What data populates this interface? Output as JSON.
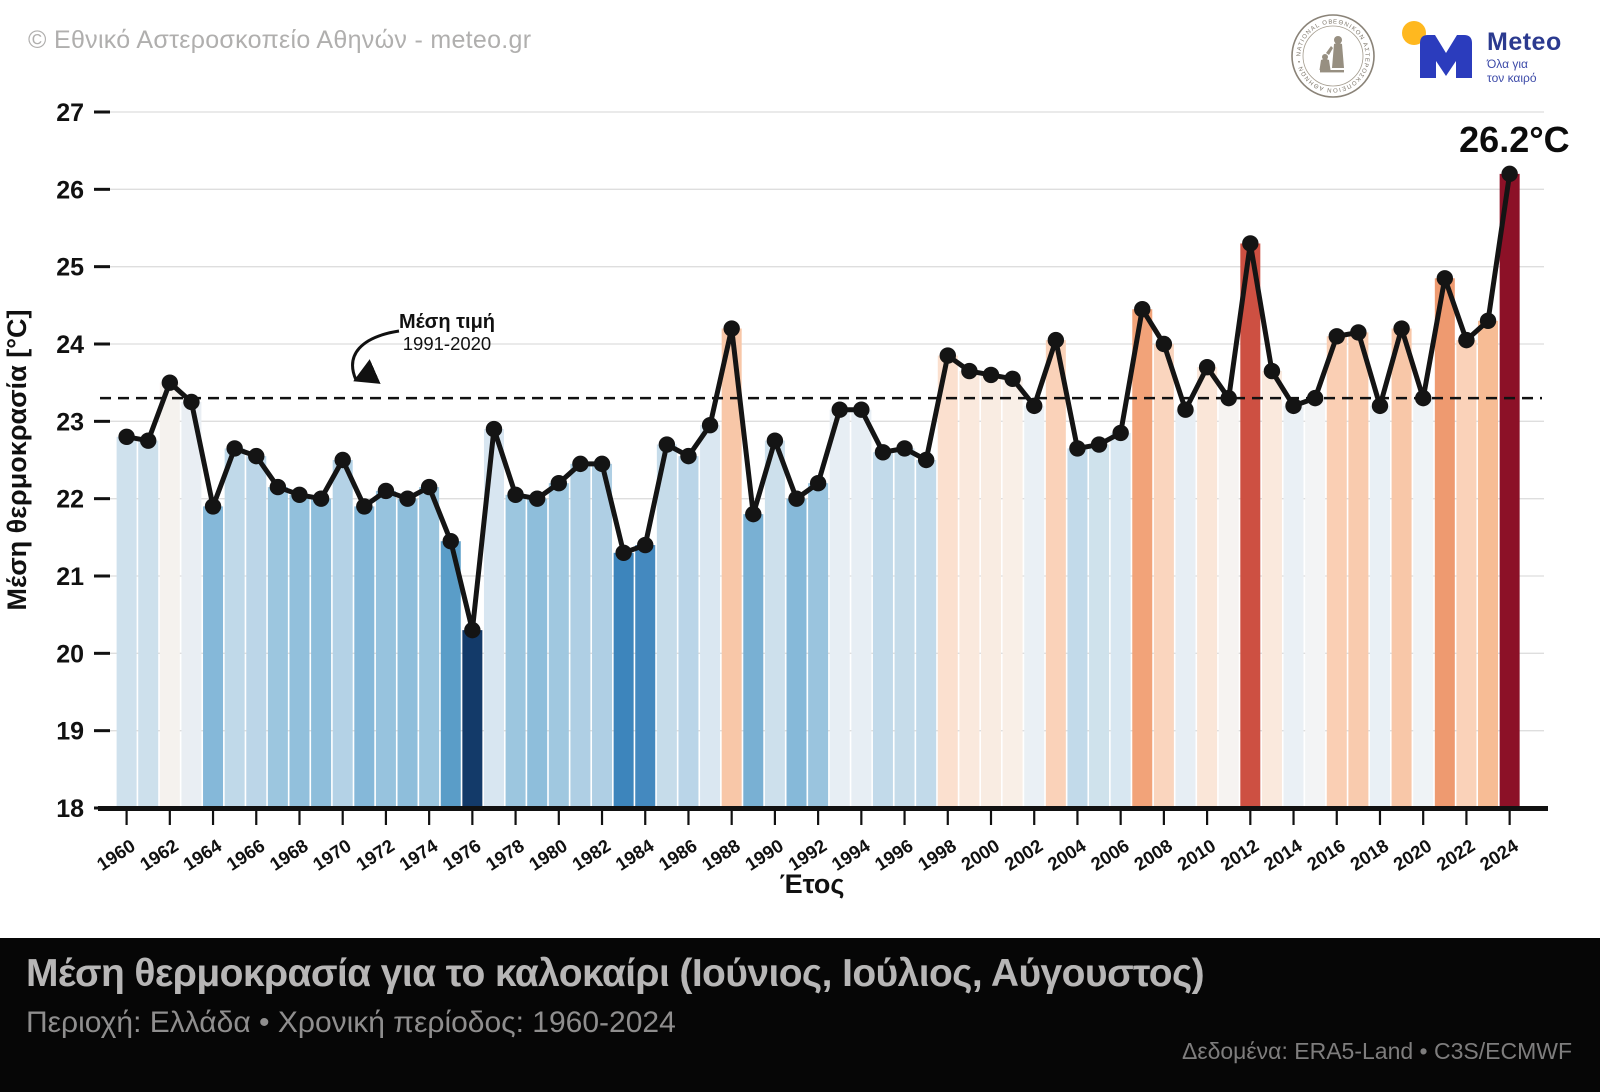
{
  "header": {
    "copyright": "© Εθνικό Αστεροσκοπείο Αθηνών - meteo.gr"
  },
  "logos": {
    "noa_ring_text": "ΕΘΝΙΚΟΝ ΑΣΤΕΡΟΣΚΟΠΕΙΟΝ ΑΘΗΝΩΝ • NATIONAL OBSERVATORY OF ATHENS •",
    "meteo_name": "Meteo",
    "meteo_tagline_line1": "Όλα για",
    "meteo_tagline_line2": "τον καιρό",
    "meteo_blue": "#2b3cbd",
    "meteo_dot_yellow": "#ffb81f"
  },
  "footer": {
    "title": "Μέση θερμοκρασία για το καλοκαίρι (Ιούνιος, Ιούλιος, Αύγουστος)",
    "subtitle": "Περιοχή: Ελλάδα • Χρονική περίοδος: 1960-2024",
    "source": "Δεδομένα: ERA5-Land • C3S/ECMWF",
    "background": "#060606"
  },
  "chart_data": {
    "type": "bar",
    "title": "",
    "xlabel": "Έτος",
    "ylabel": "Μέση θερμοκρασία [°C]",
    "ylim": [
      18,
      27
    ],
    "y_ticks": [
      18,
      19,
      20,
      21,
      22,
      23,
      24,
      25,
      26,
      27
    ],
    "x_ticks": [
      1960,
      1962,
      1964,
      1966,
      1968,
      1970,
      1972,
      1974,
      1976,
      1978,
      1980,
      1982,
      1984,
      1986,
      1988,
      1990,
      1992,
      1994,
      1996,
      1998,
      2000,
      2002,
      2004,
      2006,
      2008,
      2010,
      2012,
      2014,
      2016,
      2018,
      2020,
      2022,
      2024
    ],
    "grid": "horizontal",
    "legend": "none",
    "line_color": "#141414",
    "grid_color": "#dedede",
    "mean_line": {
      "value": 23.3,
      "label_line1": "Μέση τιμή",
      "label_line2": "1991-2020",
      "style": "dashed",
      "color": "#111111"
    },
    "peak_annotation": {
      "year": 2024,
      "label": "26.2°C"
    },
    "categories": [
      1960,
      1961,
      1962,
      1963,
      1964,
      1965,
      1966,
      1967,
      1968,
      1969,
      1970,
      1971,
      1972,
      1973,
      1974,
      1975,
      1976,
      1977,
      1978,
      1979,
      1980,
      1981,
      1982,
      1983,
      1984,
      1985,
      1986,
      1987,
      1988,
      1989,
      1990,
      1991,
      1992,
      1993,
      1994,
      1995,
      1996,
      1997,
      1998,
      1999,
      2000,
      2001,
      2002,
      2003,
      2004,
      2005,
      2006,
      2007,
      2008,
      2009,
      2010,
      2011,
      2012,
      2013,
      2014,
      2015,
      2016,
      2017,
      2018,
      2019,
      2020,
      2021,
      2022,
      2023,
      2024
    ],
    "values": [
      22.8,
      22.75,
      23.5,
      23.25,
      21.9,
      22.65,
      22.55,
      22.15,
      22.05,
      22.0,
      22.5,
      21.9,
      22.1,
      22.0,
      22.15,
      21.45,
      20.3,
      22.9,
      22.05,
      22.0,
      22.2,
      22.45,
      22.45,
      21.3,
      21.4,
      22.7,
      22.55,
      22.95,
      24.2,
      21.8,
      22.75,
      22.0,
      22.2,
      23.15,
      23.15,
      22.6,
      22.65,
      22.5,
      23.85,
      23.65,
      23.6,
      23.55,
      23.2,
      24.05,
      22.65,
      22.7,
      22.85,
      24.45,
      24.0,
      23.15,
      23.7,
      23.3,
      25.3,
      23.65,
      23.2,
      23.3,
      24.1,
      24.15,
      23.2,
      24.2,
      23.3,
      24.85,
      24.05,
      24.3,
      26.2
    ],
    "bar_colors": [
      "#cfe1ed",
      "#cde0ec",
      "#f5f2ee",
      "#e9eef3",
      "#85b8d9",
      "#c0d9e9",
      "#bcd6e8",
      "#9cc6df",
      "#92c0dc",
      "#8ebedb",
      "#b4d2e6",
      "#85b8d9",
      "#97c3de",
      "#8ebedb",
      "#9cc6df",
      "#5a9dc8",
      "#133a69",
      "#d8e6f1",
      "#9cc6df",
      "#8ebedb",
      "#a0c8e0",
      "#afcfe4",
      "#afcfe4",
      "#3d85bc",
      "#4489bf",
      "#c6dcea",
      "#bad5e8",
      "#dae7f1",
      "#f8c7a8",
      "#79b0d3",
      "#cde0ec",
      "#86b9d9",
      "#9ac4de",
      "#e7eef4",
      "#e7eef4",
      "#c2daea",
      "#c6dcea",
      "#c2daea",
      "#fbe0cf",
      "#fae9dd",
      "#f9ece2",
      "#f9efe7",
      "#eaf0f5",
      "#fad2b9",
      "#c2daea",
      "#cfe2ec",
      "#d8e7f1",
      "#f2a379",
      "#fad5be",
      "#e7eef4",
      "#fae6d8",
      "#f6f3f1",
      "#cd5042",
      "#fae9dd",
      "#eaf0f5",
      "#f3f4f5",
      "#facfb4",
      "#f9cbae",
      "#e9f0f5",
      "#f8c7a8",
      "#eff3f6",
      "#ee9a70",
      "#fad2b9",
      "#f7bc95",
      "#8c1127"
    ]
  }
}
